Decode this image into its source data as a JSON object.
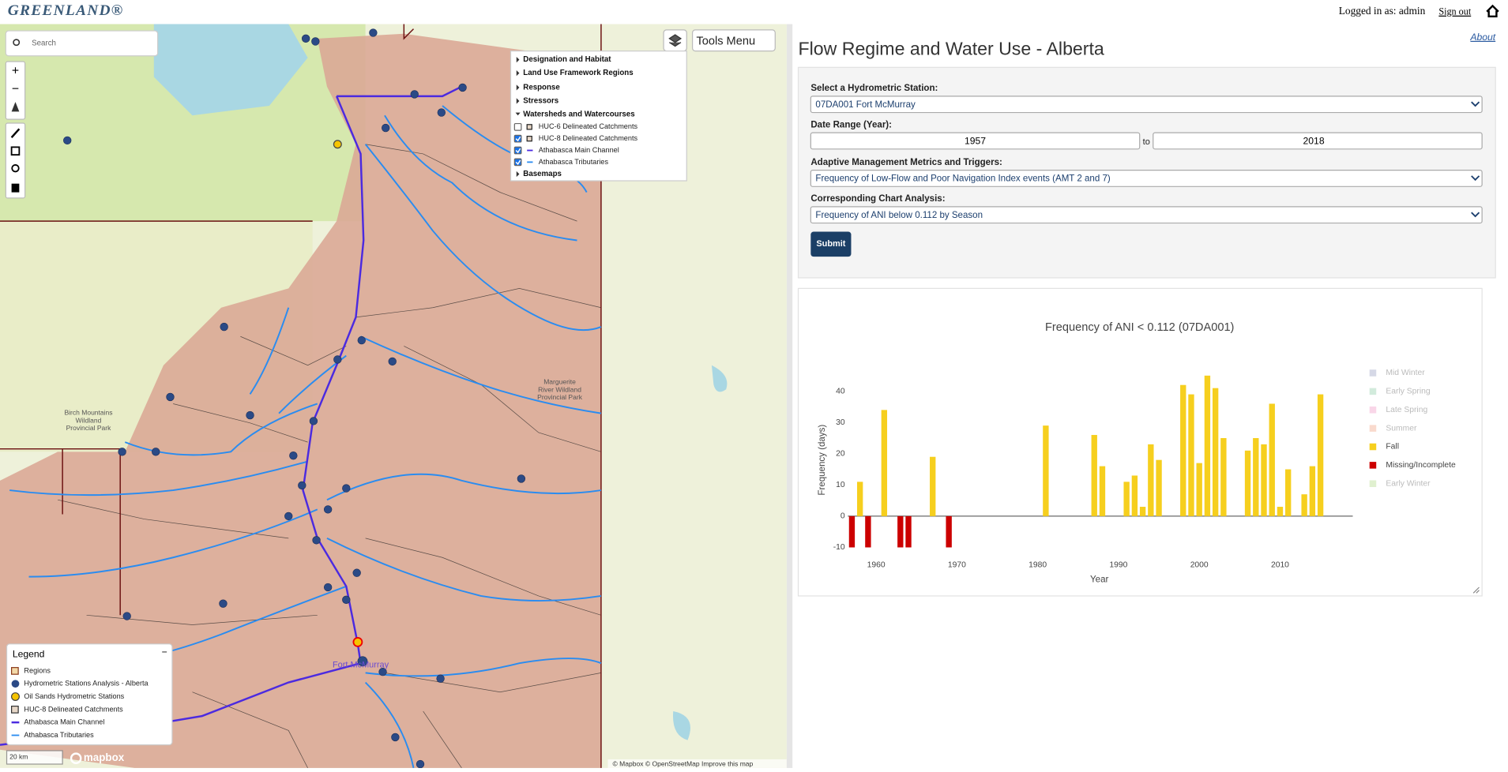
{
  "header": {
    "logo": "GREENLAND®",
    "login": "Logged in as: admin",
    "signout": "Sign out"
  },
  "map": {
    "search": "Search",
    "tools": "Tools Menu",
    "layers": [
      "Designation and Habitat",
      "Land Use Framework Regions",
      "Response",
      "Stressors",
      "Watersheds and Watercourses"
    ],
    "sublayers": [
      {
        "label": "HUC-6 Delineated Catchments",
        "checked": false
      },
      {
        "label": "HUC-8 Delineated Catchments",
        "checked": true
      },
      {
        "label": "Athabasca Main Channel",
        "checked": true
      },
      {
        "label": "Athabasca Tributaries",
        "checked": true
      }
    ],
    "basemaps": "Basemaps",
    "legend_title": "Legend",
    "legend": [
      "Regions",
      "Hydrometric Stations Analysis - Alberta",
      "Oil Sands Hydrometric Stations",
      "HUC-8 Delineated Catchments",
      "Athabasca Main Channel",
      "Athabasca Tributaries"
    ],
    "birch": [
      "Birch Mountains",
      "Wildland",
      "Provincial Park"
    ],
    "marguerite": [
      "Marguerite",
      "River Wildland",
      "Provincial Park"
    ],
    "town": "Fort McMurray",
    "scale": "20 km",
    "mapbox": "mapbox",
    "attribution": "© Mapbox © OpenStreetMap  Improve this map"
  },
  "form": {
    "title": "Flow Regime and Water Use - Alberta",
    "about": "About",
    "station_label": "Select a Hydrometric Station:",
    "station": "07DA001 Fort McMurray",
    "date_label": "Date Range (Year):",
    "from": "1957",
    "to_word": "to",
    "to": "2018",
    "metric_label": "Adaptive Management Metrics and Triggers:",
    "metric": "Frequency of Low-Flow and Poor Navigation Index events (AMT 2 and 7)",
    "analysis_label": "Corresponding Chart Analysis:",
    "analysis": "Frequency of ANI below 0.112 by Season",
    "submit": "Submit"
  },
  "chart_data": {
    "type": "bar",
    "title": "Frequency of ANI < 0.112 (07DA001)",
    "x_label": "Year",
    "y_label": "Frequency (days)",
    "x": [
      1957,
      1958,
      1959,
      1961,
      1963,
      1964,
      1967,
      1969,
      1981,
      1987,
      1988,
      1991,
      1992,
      1993,
      1994,
      1995,
      1998,
      1999,
      2000,
      2001,
      2002,
      2003,
      2006,
      2007,
      2008,
      2009,
      2010,
      2011,
      2013,
      2014,
      2015
    ],
    "series": [
      {
        "name": "Mid Winter",
        "color": "#c3c8dc",
        "values": [
          null,
          null,
          null,
          null,
          null,
          null,
          null,
          null,
          null,
          null,
          null,
          null,
          null,
          null,
          null,
          null,
          null,
          null,
          null,
          null,
          null,
          null,
          null,
          null,
          null,
          null,
          null,
          null,
          null,
          null,
          null
        ]
      },
      {
        "name": "Early Spring",
        "color": "#bfe3cd",
        "values": [
          null,
          null,
          null,
          null,
          null,
          null,
          null,
          null,
          null,
          null,
          null,
          null,
          null,
          null,
          null,
          null,
          null,
          null,
          null,
          null,
          null,
          null,
          null,
          null,
          null,
          null,
          null,
          null,
          null,
          null,
          null
        ]
      },
      {
        "name": "Late Spring",
        "color": "#f7c4de",
        "values": [
          null,
          null,
          null,
          null,
          null,
          null,
          null,
          null,
          null,
          null,
          null,
          null,
          null,
          null,
          null,
          null,
          null,
          null,
          null,
          null,
          null,
          null,
          null,
          null,
          null,
          null,
          null,
          null,
          null,
          null,
          null
        ]
      },
      {
        "name": "Summer",
        "color": "#f6cbb8",
        "values": [
          null,
          null,
          null,
          null,
          null,
          null,
          null,
          null,
          null,
          null,
          null,
          null,
          null,
          null,
          null,
          null,
          null,
          null,
          null,
          null,
          null,
          null,
          null,
          null,
          null,
          null,
          null,
          null,
          null,
          null,
          null
        ]
      },
      {
        "name": "Fall",
        "color": "#f6cf1e",
        "values": [
          null,
          11,
          null,
          34,
          null,
          null,
          19,
          null,
          29,
          26,
          16,
          11,
          13,
          3,
          23,
          18,
          42,
          39,
          17,
          45,
          41,
          25,
          21,
          25,
          23,
          36,
          3,
          15,
          7,
          16,
          39
        ]
      },
      {
        "name": "Missing/Incomplete",
        "color": "#cc0000",
        "values": [
          -10,
          null,
          -10,
          null,
          -10,
          -10,
          null,
          -10,
          null,
          null,
          null,
          null,
          null,
          null,
          null,
          null,
          null,
          null,
          null,
          null,
          null,
          null,
          null,
          null,
          null,
          null,
          null,
          null,
          null,
          null,
          null
        ]
      },
      {
        "name": "Early Winter",
        "color": "#d3eabb",
        "values": [
          null,
          null,
          null,
          null,
          null,
          null,
          null,
          null,
          null,
          null,
          null,
          null,
          null,
          null,
          null,
          null,
          null,
          null,
          null,
          null,
          null,
          null,
          null,
          null,
          null,
          null,
          null,
          null,
          null,
          null,
          null
        ]
      }
    ],
    "xlim": [
      1956.5,
      2019
    ],
    "xticks": [
      1960,
      1970,
      1980,
      1990,
      2000,
      2010
    ],
    "ylim": [
      -12,
      48
    ],
    "yticks": [
      -10,
      0,
      10,
      20,
      30,
      40
    ],
    "grid": false
  }
}
